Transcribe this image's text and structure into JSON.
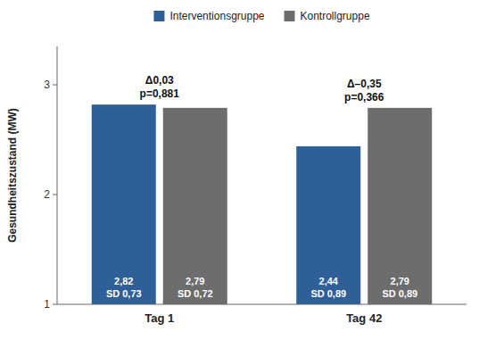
{
  "chart_data": {
    "type": "bar",
    "categories": [
      "Tag 1",
      "Tag 42"
    ],
    "series": [
      {
        "name": "Interventionsgruppe",
        "color": "#2E5F99",
        "values": [
          2.82,
          2.44
        ],
        "value_labels": [
          "2,82",
          "2,44"
        ],
        "sd_labels": [
          "SD 0,73",
          "SD 0,89"
        ]
      },
      {
        "name": "Kontrollgruppe",
        "color": "#6D6D6D",
        "values": [
          2.79,
          2.79
        ],
        "value_labels": [
          "2,79",
          "2,79"
        ],
        "sd_labels": [
          "SD 0,72",
          "SD 0,89"
        ]
      }
    ],
    "delta_labels": [
      "Δ0,03",
      "Δ–0,35"
    ],
    "p_labels": [
      "p=0,881",
      "p=0,366"
    ],
    "ylabel": "Gesundheitszustand (MW)",
    "ylim": [
      1,
      3.35
    ],
    "yticks": [
      1,
      2,
      3
    ],
    "grid": false,
    "legend": "top",
    "data_labels": true
  }
}
